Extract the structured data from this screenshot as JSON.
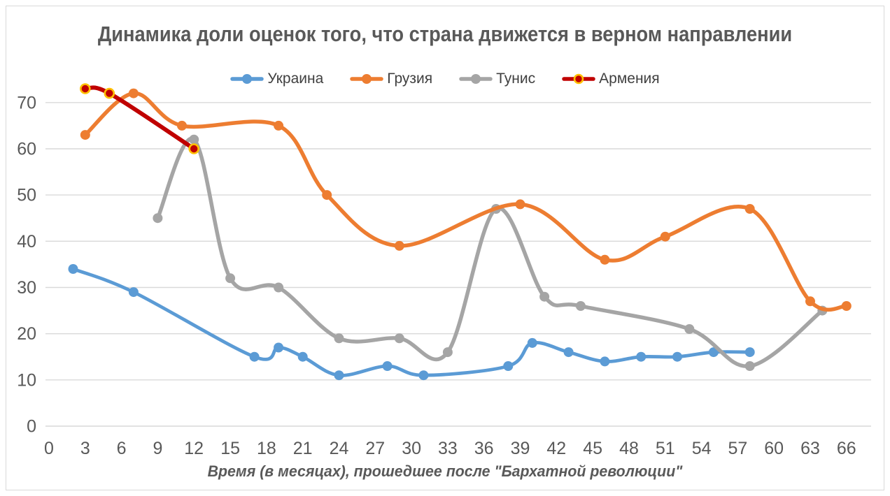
{
  "chart_data": {
    "type": "line",
    "title": "Динамика доли оценок того, что страна движется в верном направлении",
    "xlabel": "Время (в месяцах), прошедшее после \"Бархатной революции\"",
    "ylabel": "",
    "x_ticks": [
      0,
      3,
      6,
      9,
      12,
      15,
      18,
      21,
      24,
      27,
      30,
      33,
      36,
      39,
      42,
      45,
      48,
      51,
      54,
      57,
      60,
      63,
      66
    ],
    "y_ticks": [
      0,
      10,
      20,
      30,
      40,
      50,
      60,
      70
    ],
    "xlim": [
      0,
      69
    ],
    "ylim": [
      0,
      78
    ],
    "grid": "horizontal",
    "smooth": true,
    "legend_position": "top",
    "series": [
      {
        "id": "ukraine",
        "name": "Украина",
        "color": "#5B9BD5",
        "line_width": 4.8,
        "marker_radius": 7,
        "points": [
          [
            2,
            34
          ],
          [
            7,
            29
          ],
          [
            17,
            15
          ],
          [
            19,
            17
          ],
          [
            21,
            15
          ],
          [
            24,
            11
          ],
          [
            28,
            13
          ],
          [
            31,
            11
          ],
          [
            38,
            13
          ],
          [
            40,
            18
          ],
          [
            43,
            16
          ],
          [
            46,
            14
          ],
          [
            49,
            15
          ],
          [
            52,
            15
          ],
          [
            55,
            16
          ],
          [
            58,
            16
          ]
        ]
      },
      {
        "id": "georgia",
        "name": "Грузия",
        "color": "#ED7D31",
        "line_width": 5.5,
        "marker_radius": 7,
        "points": [
          [
            3,
            63
          ],
          [
            7,
            72
          ],
          [
            11,
            65
          ],
          [
            19,
            65
          ],
          [
            23,
            50
          ],
          [
            29,
            39
          ],
          [
            39,
            48
          ],
          [
            46,
            36
          ],
          [
            51,
            41
          ],
          [
            58,
            47
          ],
          [
            63,
            27
          ],
          [
            66,
            26
          ]
        ]
      },
      {
        "id": "tunisia",
        "name": "Тунис",
        "color": "#A5A5A5",
        "line_width": 5.5,
        "marker_radius": 7,
        "points": [
          [
            9,
            45
          ],
          [
            12,
            62
          ],
          [
            15,
            32
          ],
          [
            19,
            30
          ],
          [
            24,
            19
          ],
          [
            29,
            19
          ],
          [
            33,
            16
          ],
          [
            37,
            47
          ],
          [
            41,
            28
          ],
          [
            44,
            26
          ],
          [
            53,
            21
          ],
          [
            58,
            13
          ],
          [
            64,
            25
          ]
        ]
      },
      {
        "id": "armenia",
        "name": "Армения",
        "color": "#C00000",
        "line_width": 6,
        "marker_radius": 6.5,
        "marker_ring": "#FFC000",
        "marker_ring_width": 2.6,
        "points": [
          [
            3,
            73
          ],
          [
            5,
            72
          ],
          [
            12,
            60
          ]
        ]
      }
    ],
    "z_order": [
      0,
      2,
      1,
      3
    ]
  },
  "colors": {
    "grid": "#D9D9D9",
    "axis_text": "#595959",
    "legend_text": "#404040",
    "background": "#FFFFFF"
  }
}
